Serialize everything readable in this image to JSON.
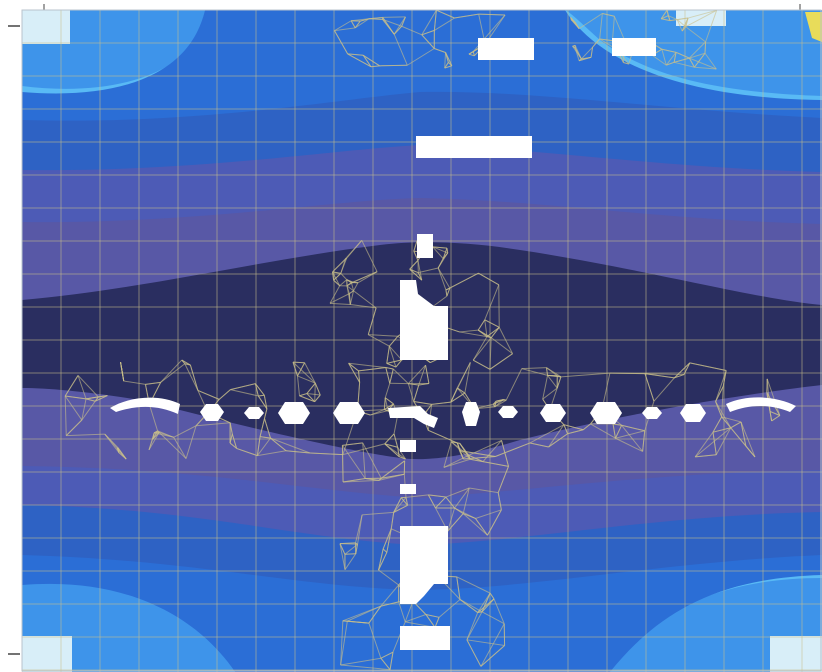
{
  "figure": {
    "kind": "finite-element stress contour plot on a mesh",
    "colors": {
      "band_lightest": "#59baf5",
      "band_light": "#3e94ea",
      "band_mid": "#2b6ed6",
      "band_blue": "#2e62c4",
      "band_slate": "#4d5bb6",
      "band_violet": "#5858a6",
      "band_core": "#2a2e60",
      "mesh_line": "#c9c08a",
      "corner_patch": "#d8eef8",
      "accent_yellow": "#e8dc5a",
      "opening": "#ffffff"
    }
  }
}
